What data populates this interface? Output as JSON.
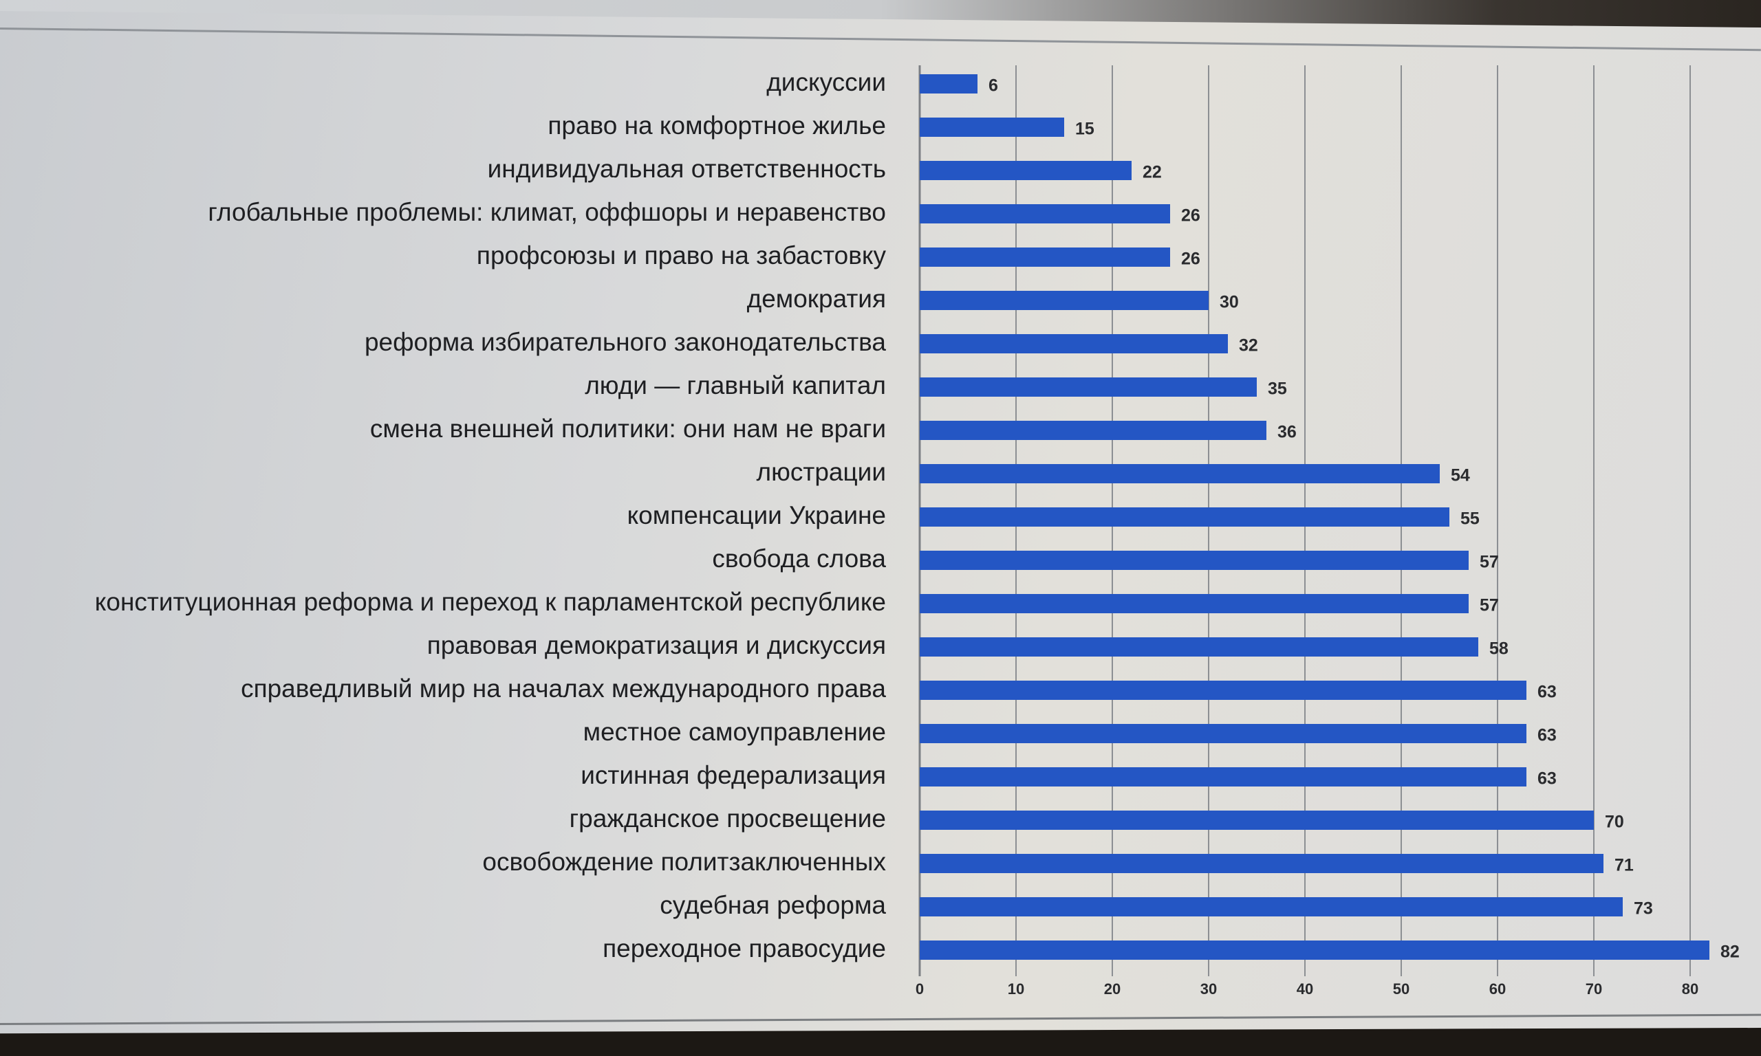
{
  "chart_data": {
    "type": "bar",
    "orientation": "horizontal",
    "categories": [
      "дискуссии",
      "право на комфортное жилье",
      "индивидуальная ответственность",
      "глобальные проблемы: климат, оффшоры и неравенство",
      "профсоюзы и право на забастовку",
      "демократия",
      "реформа избирательного законодательства",
      "люди — главный капитал",
      "смена внешней политики: они нам не враги",
      "люстрации",
      "компенсации Украине",
      "свобода слова",
      "конституционная реформа и переход к парламентской республике",
      "правовая демократизация и дискуссия",
      "справедливый мир на началах международного права",
      "местное самоуправление",
      "истинная федерализация",
      "гражданское просвещение",
      "освобождение политзаключенных",
      "судебная реформа",
      "переходное правосудие"
    ],
    "values": [
      6,
      15,
      22,
      26,
      26,
      30,
      32,
      35,
      36,
      54,
      55,
      57,
      57,
      58,
      63,
      63,
      63,
      70,
      71,
      73,
      82
    ],
    "xlim": [
      0,
      90
    ],
    "xticks": [
      0,
      10,
      20,
      30,
      40,
      50,
      60,
      70,
      80
    ],
    "grid": true,
    "data_labels": true,
    "title": "",
    "xlabel": "",
    "ylabel": "",
    "bar_color": "#2456c4"
  }
}
